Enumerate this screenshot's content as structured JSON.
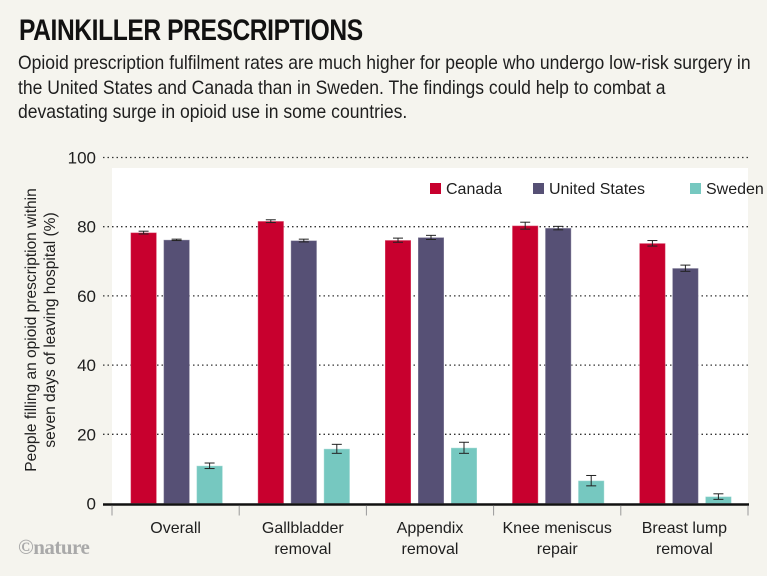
{
  "header": {
    "title": "PAINKILLER PRESCRIPTIONS",
    "subtitle": "Opioid prescription fulfilment rates are much higher for people who undergo low-risk surgery in the United States and Canada than in Sweden. The findings could help to combat a devastating surge in opioid use in some countries."
  },
  "credit": "©nature",
  "colors": {
    "Canada": "#c8002e",
    "United States": "#565075",
    "Sweden": "#76c8c0",
    "plot_background": "#ffffff",
    "page_background": "#f5f4ee"
  },
  "chart_data": {
    "type": "bar",
    "title": "PAINKILLER PRESCRIPTIONS",
    "xlabel": "",
    "ylabel_lines": [
      "People filling an opioid prescription within",
      "seven days of leaving hospital (%)"
    ],
    "ylabel": "People filling an opioid prescription within seven days of leaving hospital (%)",
    "ylim": [
      0,
      100
    ],
    "yticks": [
      0,
      20,
      40,
      60,
      80,
      100
    ],
    "grid": true,
    "legend_position": "top-right",
    "categories": [
      "Overall",
      "Gallbladder removal",
      "Appendix removal",
      "Knee meniscus repair",
      "Breast lump removal"
    ],
    "category_lines": [
      [
        "Overall"
      ],
      [
        "Gallbladder",
        "removal"
      ],
      [
        "Appendix",
        "removal"
      ],
      [
        "Knee meniscus",
        "repair"
      ],
      [
        "Breast lump",
        "removal"
      ]
    ],
    "series": [
      {
        "name": "Canada",
        "values": [
          78.3,
          81.6,
          76.1,
          80.3,
          75.2
        ],
        "error": [
          0.4,
          0.4,
          0.6,
          1.0,
          0.8
        ]
      },
      {
        "name": "United States",
        "values": [
          76.2,
          76.0,
          76.9,
          79.6,
          68.0
        ],
        "error": [
          0.2,
          0.4,
          0.6,
          0.5,
          0.9
        ]
      },
      {
        "name": "Sweden",
        "values": [
          10.9,
          15.8,
          16.1,
          6.6,
          2.0
        ],
        "error": [
          0.8,
          1.3,
          1.6,
          1.5,
          0.8
        ]
      }
    ]
  }
}
